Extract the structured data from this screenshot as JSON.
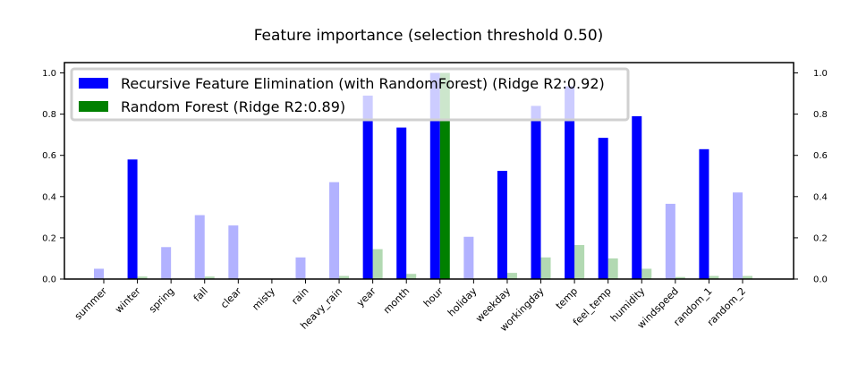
{
  "chart_data": {
    "type": "bar",
    "title": "Feature importance (selection threshold 0.50)",
    "xlabel": "",
    "ylabel": "",
    "ylim": [
      0,
      1.05
    ],
    "yticks": [
      "0.0",
      "0.2",
      "0.4",
      "0.6",
      "0.8",
      "1.0"
    ],
    "right_axis_ticks": true,
    "grid": false,
    "legend_position": "top-left",
    "categories": [
      "summer",
      "winter",
      "spring",
      "fall",
      "clear",
      "misty",
      "rain",
      "heavy_rain",
      "year",
      "month",
      "hour",
      "holiday",
      "weekday",
      "workingday",
      "temp",
      "feel_temp",
      "humidity",
      "windspeed",
      "random_1",
      "random_2"
    ],
    "selection_threshold": 0.5,
    "series": [
      {
        "name": "Recursive Feature Elimination (with RandomForest) (Ridge R2:0.92)",
        "color": "#0000ff",
        "values": [
          0.05,
          0.58,
          0.155,
          0.31,
          0.26,
          0.0,
          0.105,
          0.47,
          0.89,
          0.735,
          1.0,
          0.205,
          0.525,
          0.84,
          0.935,
          0.685,
          0.79,
          0.365,
          0.63,
          0.42
        ]
      },
      {
        "name": "Random Forest (Ridge R2:0.89)",
        "color": "#008000",
        "values": [
          0.0,
          0.012,
          0.0,
          0.012,
          0.0,
          0.0,
          0.0,
          0.015,
          0.145,
          0.025,
          1.0,
          0.0,
          0.03,
          0.105,
          0.165,
          0.1,
          0.05,
          0.01,
          0.015,
          0.015
        ]
      }
    ]
  }
}
